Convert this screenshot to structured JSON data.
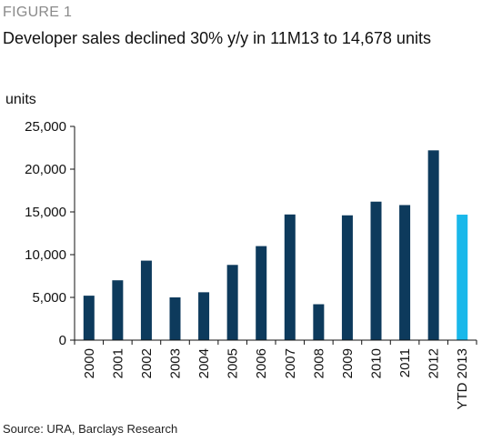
{
  "header": {
    "figure_label": "FIGURE 1",
    "title": "Developer sales declined 30% y/y in 11M13 to 14,678 units"
  },
  "footer": {
    "source": "Source: URA, Barclays Research"
  },
  "colors": {
    "bar": "#0d3a5c",
    "highlight": "#1ab8ea",
    "axis": "#111111"
  },
  "chart_data": {
    "type": "bar",
    "title": "Developer sales declined 30% y/y in 11M13 to 14,678 units",
    "ylabel": "units",
    "xlabel": "",
    "ylim": [
      0,
      25000
    ],
    "yticks": [
      0,
      5000,
      10000,
      15000,
      20000,
      25000
    ],
    "ytick_labels": [
      "0",
      "5,000",
      "10,000",
      "15,000",
      "20,000",
      "25,000"
    ],
    "categories": [
      "2000",
      "2001",
      "2002",
      "2003",
      "2004",
      "2005",
      "2006",
      "2007",
      "2008",
      "2009",
      "2010",
      "2011",
      "2012",
      "YTD 2013"
    ],
    "values": [
      5200,
      7000,
      9300,
      5000,
      5600,
      8800,
      11000,
      14700,
      4200,
      14600,
      16200,
      15800,
      22200,
      14678
    ],
    "highlight_index": 13,
    "grid": false,
    "legend": "none"
  }
}
